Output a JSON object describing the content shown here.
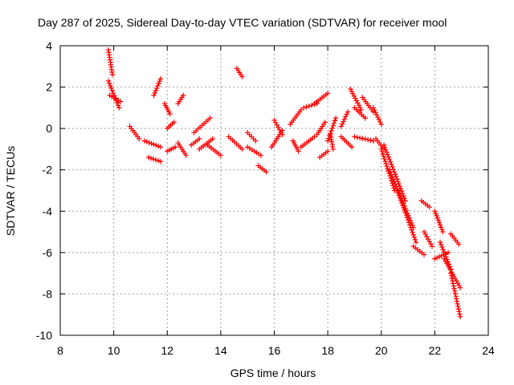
{
  "chart_data": {
    "type": "scatter",
    "title": "Day 287 of 2025, Sidereal Day-to-day VTEC variation (SDTVAR) for receiver mool",
    "xlabel": "GPS time / hours",
    "ylabel": "SDTVAR / TECUs",
    "xlim": [
      8,
      24
    ],
    "ylim": [
      -10,
      4
    ],
    "xticks": [
      "8",
      "10",
      "12",
      "14",
      "16",
      "18",
      "20",
      "22",
      "24"
    ],
    "yticks": [
      "4",
      "2",
      "0",
      "-2",
      "-4",
      "-6",
      "-8",
      "-10"
    ],
    "grid": true,
    "marker": "+",
    "color": "#ff0000",
    "segments": [
      [
        9.8,
        3.8,
        9.95,
        2.6
      ],
      [
        9.8,
        2.3,
        10.2,
        1.0
      ],
      [
        9.85,
        1.6,
        10.25,
        1.3
      ],
      [
        10.6,
        0.1,
        10.95,
        -0.5
      ],
      [
        11.15,
        -0.6,
        11.75,
        -0.9
      ],
      [
        11.3,
        -1.4,
        11.75,
        -1.6
      ],
      [
        11.5,
        1.6,
        11.75,
        2.4
      ],
      [
        11.9,
        1.2,
        12.1,
        0.7
      ],
      [
        12.0,
        0.0,
        12.25,
        0.3
      ],
      [
        12.0,
        -1.1,
        12.3,
        -0.9
      ],
      [
        12.4,
        1.2,
        12.6,
        1.6
      ],
      [
        12.4,
        -0.7,
        12.7,
        -1.3
      ],
      [
        12.9,
        -0.8,
        13.2,
        -0.5
      ],
      [
        13.0,
        -0.2,
        13.6,
        0.5
      ],
      [
        13.2,
        -1.0,
        13.7,
        -0.5
      ],
      [
        13.5,
        -0.8,
        14.0,
        -1.3
      ],
      [
        14.3,
        -0.4,
        14.8,
        -1.0
      ],
      [
        14.6,
        2.9,
        14.8,
        2.5
      ],
      [
        15.0,
        -0.2,
        15.3,
        -0.6
      ],
      [
        15.0,
        -0.9,
        15.5,
        -1.3
      ],
      [
        15.4,
        -1.8,
        15.7,
        -2.1
      ],
      [
        15.9,
        -0.9,
        16.3,
        -0.1
      ],
      [
        16.0,
        0.4,
        16.3,
        -0.3
      ],
      [
        16.6,
        0.2,
        17.0,
        0.9
      ],
      [
        16.7,
        -0.6,
        16.9,
        -1.1
      ],
      [
        17.0,
        -0.9,
        17.5,
        -0.4
      ],
      [
        17.1,
        1.0,
        17.6,
        1.2
      ],
      [
        17.5,
        1.2,
        18.0,
        1.7
      ],
      [
        17.6,
        -0.3,
        17.9,
        0.3
      ],
      [
        17.7,
        -1.4,
        18.0,
        -1.1
      ],
      [
        18.0,
        -0.6,
        18.3,
        0.5
      ],
      [
        18.2,
        -1.0,
        18.1,
        -0.3
      ],
      [
        18.5,
        0.1,
        18.75,
        0.8
      ],
      [
        18.5,
        -0.4,
        18.9,
        -0.9
      ],
      [
        18.85,
        1.9,
        19.25,
        0.9
      ],
      [
        19.0,
        1.0,
        19.4,
        0.5
      ],
      [
        19.0,
        -0.4,
        19.7,
        -0.6
      ],
      [
        19.3,
        1.5,
        19.7,
        0.8
      ],
      [
        19.7,
        1.0,
        20.0,
        0.2
      ],
      [
        19.8,
        -0.5,
        20.1,
        -1.0
      ],
      [
        20.0,
        -1.0,
        20.5,
        -3.0
      ],
      [
        20.1,
        -0.8,
        20.9,
        -3.5
      ],
      [
        20.3,
        -2.0,
        21.2,
        -4.8
      ],
      [
        20.6,
        -3.0,
        21.3,
        -5.5
      ],
      [
        21.2,
        -5.7,
        21.6,
        -6.1
      ],
      [
        21.5,
        -3.5,
        21.8,
        -3.8
      ],
      [
        21.6,
        -5.0,
        21.9,
        -5.7
      ],
      [
        22.0,
        -4.0,
        22.3,
        -5.0
      ],
      [
        22.0,
        -6.3,
        22.5,
        -6.0
      ],
      [
        22.2,
        -5.5,
        22.6,
        -6.8
      ],
      [
        22.35,
        -6.3,
        22.95,
        -7.7
      ],
      [
        22.6,
        -7.0,
        22.95,
        -9.1
      ],
      [
        22.6,
        -5.1,
        22.9,
        -5.6
      ]
    ]
  }
}
